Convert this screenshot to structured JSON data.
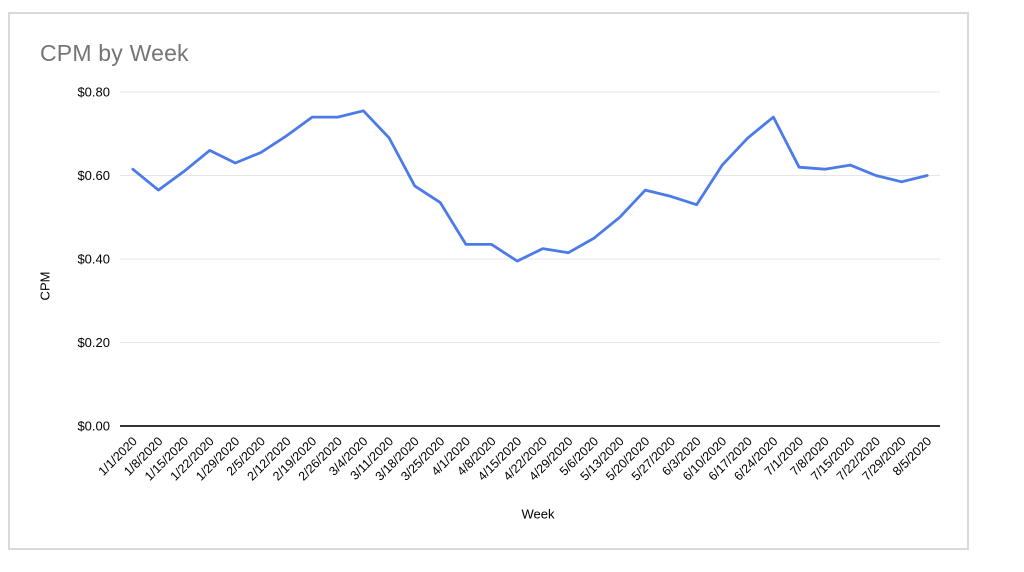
{
  "chart_data": {
    "type": "line",
    "title": "CPM by Week",
    "xlabel": "Week",
    "ylabel": "CPM",
    "legend": "none",
    "grid": true,
    "ylim": [
      0,
      0.8
    ],
    "y_ticks": [
      {
        "value": 0.0,
        "label": "$0.00"
      },
      {
        "value": 0.2,
        "label": "$0.20"
      },
      {
        "value": 0.4,
        "label": "$0.40"
      },
      {
        "value": 0.6,
        "label": "$0.60"
      },
      {
        "value": 0.8,
        "label": "$0.80"
      }
    ],
    "categories": [
      "1/1/2020",
      "1/8/2020",
      "1/15/2020",
      "1/22/2020",
      "1/29/2020",
      "2/5/2020",
      "2/12/2020",
      "2/19/2020",
      "2/26/2020",
      "3/4/2020",
      "3/11/2020",
      "3/18/2020",
      "3/25/2020",
      "4/1/2020",
      "4/8/2020",
      "4/15/2020",
      "4/22/2020",
      "4/29/2020",
      "5/6/2020",
      "5/13/2020",
      "5/20/2020",
      "5/27/2020",
      "6/3/2020",
      "6/10/2020",
      "6/17/2020",
      "6/24/2020",
      "7/1/2020",
      "7/8/2020",
      "7/15/2020",
      "7/22/2020",
      "7/29/2020",
      "8/5/2020"
    ],
    "series": [
      {
        "name": "CPM",
        "values": [
          0.615,
          0.565,
          0.61,
          0.66,
          0.63,
          0.655,
          0.695,
          0.74,
          0.74,
          0.755,
          0.69,
          0.575,
          0.535,
          0.435,
          0.435,
          0.395,
          0.425,
          0.415,
          0.45,
          0.5,
          0.565,
          0.55,
          0.53,
          0.625,
          0.69,
          0.74,
          0.62,
          0.615,
          0.625,
          0.6,
          0.585,
          0.6
        ]
      }
    ],
    "line_color": "#4a7be8",
    "grid_color": "#e6e6e6",
    "axis_color": "#333333",
    "title_color": "#757575"
  }
}
